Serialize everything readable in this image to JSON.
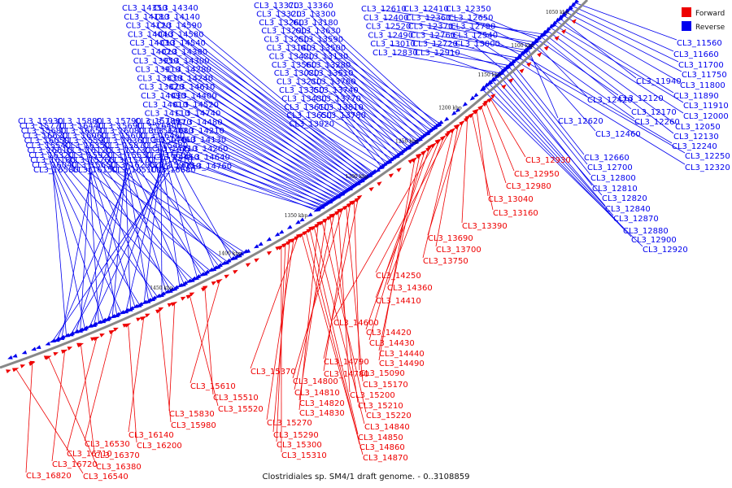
{
  "caption": "Clostridiales sp. SM4/1 draft genome. - 0..3108859",
  "colors": {
    "forward": "#ee0000",
    "reverse": "#0000ee",
    "backbone": "#888888"
  },
  "legend": [
    {
      "label": "Forward",
      "color": "#ee0000"
    },
    {
      "label": "Reverse",
      "color": "#0000ee"
    }
  ],
  "ticks": [
    "1050 kbp",
    "1100 kbp",
    "1150 kbp",
    "1200 kbp",
    "1250 kbp",
    "1300 kbp",
    "1350 kbp",
    "1400 kbp",
    "1450 kbp"
  ],
  "groups": [
    {
      "strand": "reverse",
      "labels": [
        "CL3_14350",
        "CL3_14340",
        "CL3_14180",
        "CL3_14140",
        "CL3_14120",
        "CL3_14590",
        "CL3_14040",
        "CL3_14580",
        "CL3_14030",
        "CL3_14540",
        "CL3_14020",
        "CL3_14380",
        "CL3_13950",
        "CL3_14300",
        "CL3_13910",
        "CL3_14280",
        "CL3_13830",
        "CL3_14240",
        "CL3_13820",
        "CL3_14610",
        "CL3_14090",
        "CL3_14400",
        "CL3_14010",
        "CL3_14520",
        "CL3_14110",
        "CL3_14740",
        "CL3_14270",
        "CL3_14480",
        "CL3_14080",
        "CL3_14210",
        "CL3_14460",
        "CL3_14130",
        "CL3_14710",
        "CL3_14260",
        "CL3_14450",
        "CL3_14640",
        "CL3_14750",
        "CL3_14760"
      ]
    },
    {
      "strand": "reverse",
      "labels": [
        "CL3_13370",
        "CL3_13360",
        "CL3_13320",
        "CL3_13300",
        "CL3_13260",
        "CL3_13180",
        "CL3_13290",
        "CL3_13630",
        "CL3_13250",
        "CL3_13590",
        "CL3_13140",
        "CL3_13500",
        "CL3_13420",
        "CL3_13130",
        "CL3_13560",
        "CL3_13280",
        "CL3_13020",
        "CL3_13510",
        "CL3_13210",
        "CL3_13760",
        "CL3_13350",
        "CL3_13740",
        "CL3_13430",
        "CL3_13770",
        "CL3_13610",
        "CL3_13810",
        "CL3_13650",
        "CL3_13780",
        "CL3_13920"
      ]
    },
    {
      "strand": "reverse",
      "labels": [
        "CL3_12610",
        "CL3_12410",
        "CL3_12350",
        "CL3_12400",
        "CL3_12360",
        "CL3_12650",
        "CL3_12520",
        "CL3_12370",
        "CL3_12790",
        "CL3_12490",
        "CL3_12760",
        "CL3_12540",
        "CL3_13010",
        "CL3_12720",
        "CL3_13000",
        "CL3_12830",
        "CL3_12910"
      ]
    },
    {
      "strand": "reverse",
      "labels": [
        "CL3_15930",
        "CL3_15880",
        "CL3_15790",
        "CL3_15780",
        "CL3_15770",
        "CL3_16440",
        "CL3_15690",
        "CL3_16400",
        "CL3_15680",
        "CL3_16650",
        "CL3_16080",
        "CL3_15640",
        "CL3_16620",
        "CL3_16060",
        "CL3_15600",
        "CL3_16460",
        "CL3_16050",
        "CL3_15590",
        "CL3_16360",
        "CL3_15970",
        "CL3_15540",
        "CL3_16350",
        "CL3_15870",
        "CL3_15480",
        "CL3_16610",
        "CL3_16120",
        "CL3_15730",
        "CL3_15390",
        "CL3_16320",
        "CL3_15920",
        "CL3_15530",
        "CL3_16600",
        "CL3_16180",
        "CL3_15760",
        "CL3_15470",
        "CL3_16410",
        "CL3_16040",
        "CL3_15650",
        "CL3_16290",
        "CL3_15900",
        "CL3_16580",
        "CL3_16150",
        "CL3_16510",
        "CL3_16680"
      ]
    },
    {
      "strand": "reverse",
      "labels": [
        "CL3_11560",
        "CL3_11660",
        "CL3_11700",
        "CL3_11750",
        "CL3_11800",
        "CL3_11940",
        "CL3_11890",
        "CL3_11910",
        "CL3_12000",
        "CL3_12050",
        "CL3_12130",
        "CL3_12170",
        "CL3_12120",
        "CL3_12420",
        "CL3_12260",
        "CL3_12620",
        "CL3_12460",
        "CL3_12240",
        "CL3_12250",
        "CL3_12320",
        "CL3_12660",
        "CL3_12700",
        "CL3_12800",
        "CL3_12810",
        "CL3_12820",
        "CL3_12840",
        "CL3_12870",
        "CL3_12880",
        "CL3_12900",
        "CL3_12920"
      ]
    },
    {
      "strand": "forward",
      "labels": [
        "CL3_12930",
        "CL3_12950",
        "CL3_12980",
        "CL3_13040",
        "CL3_13160",
        "CL3_13390",
        "CL3_13690",
        "CL3_13700",
        "CL3_13750",
        "CL3_14250",
        "CL3_14360",
        "CL3_14410",
        "CL3_14600",
        "CL3_14420",
        "CL3_14430",
        "CL3_14440",
        "CL3_14490"
      ]
    },
    {
      "strand": "forward",
      "labels": [
        "CL3_14790",
        "CL3_15090",
        "CL3_14780",
        "CL3_15170",
        "CL3_14800",
        "CL3_15200",
        "CL3_14810",
        "CL3_15210",
        "CL3_14820",
        "CL3_15220",
        "CL3_14830",
        "CL3_14840",
        "CL3_14850",
        "CL3_14860",
        "CL3_14870",
        "CL3_15370",
        "CL3_15270",
        "CL3_15290",
        "CL3_15300",
        "CL3_15310"
      ]
    },
    {
      "strand": "forward",
      "labels": [
        "CL3_15610",
        "CL3_15510",
        "CL3_15520",
        "CL3_15830",
        "CL3_15980",
        "CL3_16140",
        "CL3_16200",
        "CL3_16530",
        "CL3_16710",
        "CL3_16370",
        "CL3_16720",
        "CL3_16380",
        "CL3_16820",
        "CL3_16540"
      ]
    }
  ]
}
